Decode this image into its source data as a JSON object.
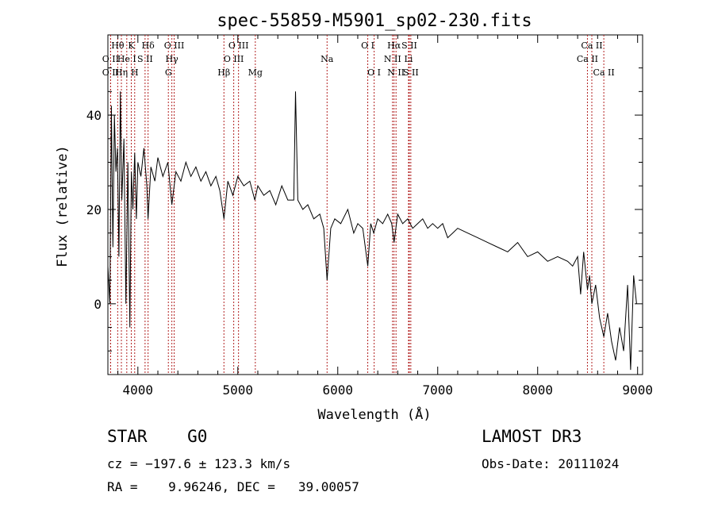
{
  "chart_data": {
    "type": "line",
    "title": "spec-55859-M5901_sp02-230.fits",
    "xlabel": "Wavelength (Å)",
    "ylabel": "Flux (relative)",
    "xlim": [
      3700,
      9050
    ],
    "ylim": [
      -15,
      57
    ],
    "x_ticks": [
      4000,
      5000,
      6000,
      7000,
      8000,
      9000
    ],
    "y_ticks": [
      0,
      20,
      40
    ],
    "grid": false,
    "series": [
      {
        "name": "spectrum",
        "x": [
          3700,
          3720,
          3735,
          3750,
          3765,
          3780,
          3795,
          3810,
          3825,
          3840,
          3860,
          3880,
          3900,
          3920,
          3935,
          3950,
          3968,
          3985,
          4000,
          4030,
          4060,
          4090,
          4102,
          4130,
          4170,
          4200,
          4250,
          4300,
          4340,
          4380,
          4430,
          4480,
          4530,
          4580,
          4630,
          4680,
          4730,
          4780,
          4820,
          4861,
          4900,
          4950,
          5000,
          5060,
          5120,
          5170,
          5200,
          5260,
          5320,
          5380,
          5440,
          5500,
          5560,
          5577,
          5600,
          5650,
          5700,
          5760,
          5820,
          5860,
          5893,
          5930,
          5970,
          6030,
          6100,
          6160,
          6200,
          6250,
          6300,
          6330,
          6360,
          6400,
          6450,
          6500,
          6540,
          6563,
          6600,
          6650,
          6700,
          6750,
          6800,
          6850,
          6900,
          6950,
          7000,
          7050,
          7100,
          7150,
          7200,
          7300,
          7400,
          7500,
          7600,
          7700,
          7800,
          7900,
          8000,
          8100,
          8200,
          8300,
          8350,
          8400,
          8430,
          8460,
          8498,
          8520,
          8542,
          8580,
          8620,
          8662,
          8700,
          8740,
          8780,
          8820,
          8860,
          8900,
          8930,
          8960,
          8990
        ],
        "y": [
          8,
          0,
          42,
          12,
          40,
          28,
          33,
          10,
          45,
          22,
          35,
          0,
          30,
          -5,
          28,
          20,
          32,
          18,
          30,
          27,
          33,
          25,
          18,
          29,
          26,
          31,
          27,
          30,
          21,
          28,
          26,
          30,
          27,
          29,
          26,
          28,
          25,
          27,
          24,
          18,
          26,
          23,
          27,
          25,
          26,
          22,
          25,
          23,
          24,
          21,
          25,
          22,
          22,
          45,
          22,
          20,
          21,
          18,
          19,
          16,
          5,
          16,
          18,
          17,
          20,
          15,
          17,
          16,
          8,
          17,
          15,
          18,
          17,
          19,
          17,
          13,
          19,
          17,
          18,
          16,
          17,
          18,
          16,
          17,
          16,
          17,
          14,
          15,
          16,
          15,
          14,
          13,
          12,
          11,
          13,
          10,
          11,
          9,
          10,
          9,
          8,
          10,
          2,
          11,
          3,
          6,
          0,
          4,
          -3,
          -7,
          -2,
          -8,
          -12,
          -5,
          -10,
          4,
          -14,
          6,
          0
        ]
      }
    ],
    "lines": [
      {
        "label": "Hθ",
        "x": 3798,
        "row": 0
      },
      {
        "label": "O II",
        "x": 3727,
        "row": 1
      },
      {
        "label": "O II",
        "x": 3727,
        "row": 2
      },
      {
        "label": "Hη",
        "x": 3835,
        "row": 2
      },
      {
        "label": "He I",
        "x": 3889,
        "row": 1
      },
      {
        "label": "K",
        "x": 3934,
        "row": 0
      },
      {
        "label": "H",
        "x": 3968,
        "row": 2
      },
      {
        "label": "S II",
        "x": 4072,
        "row": 1
      },
      {
        "label": "Hδ",
        "x": 4102,
        "row": 0
      },
      {
        "label": "O III",
        "x": 4363,
        "row": 0
      },
      {
        "label": "Hγ",
        "x": 4340,
        "row": 1
      },
      {
        "label": "G",
        "x": 4305,
        "row": 2
      },
      {
        "label": "Hβ",
        "x": 4861,
        "row": 2
      },
      {
        "label": "O III",
        "x": 5007,
        "row": 0
      },
      {
        "label": "O III",
        "x": 4959,
        "row": 1
      },
      {
        "label": "Mg",
        "x": 5175,
        "row": 2
      },
      {
        "label": "Na",
        "x": 5893,
        "row": 1
      },
      {
        "label": "O I",
        "x": 6300,
        "row": 0
      },
      {
        "label": "O I",
        "x": 6364,
        "row": 2
      },
      {
        "label": "Hα",
        "x": 6563,
        "row": 0
      },
      {
        "label": "S II",
        "x": 6716,
        "row": 0
      },
      {
        "label": "N II",
        "x": 6548,
        "row": 1
      },
      {
        "label": "Li",
        "x": 6708,
        "row": 1
      },
      {
        "label": "N II",
        "x": 6583,
        "row": 2
      },
      {
        "label": "S II",
        "x": 6731,
        "row": 2
      },
      {
        "label": "Ca II",
        "x": 8542,
        "row": 0
      },
      {
        "label": "Ca II",
        "x": 8498,
        "row": 1
      },
      {
        "label": "Ca II",
        "x": 8662,
        "row": 2
      }
    ]
  },
  "info": {
    "class_label": "STAR    G0",
    "survey": "LAMOST DR3",
    "cz": "cz = −197.6 ± 123.3 km/s",
    "obs_date": "Obs-Date: 20111024",
    "radec": "RA =    9.96246, DEC =   39.00057"
  }
}
